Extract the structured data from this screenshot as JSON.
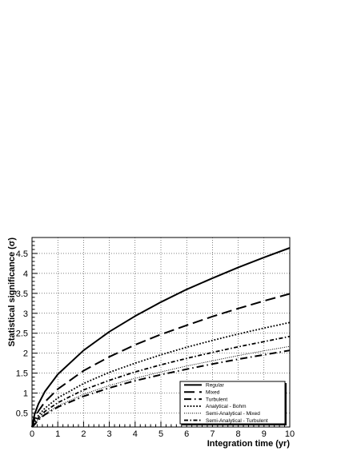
{
  "chart_data": {
    "type": "line",
    "title": "",
    "xlabel": "Integration time (yr)",
    "ylabel": "Statistical significance (σ)",
    "xlim": [
      0,
      10
    ],
    "ylim": [
      0.15,
      4.9
    ],
    "xticks": [
      0,
      1,
      2,
      3,
      4,
      5,
      6,
      7,
      8,
      9,
      10
    ],
    "yticks": [
      0.5,
      1,
      1.5,
      2,
      2.5,
      3,
      3.5,
      4,
      4.5
    ],
    "grid": true,
    "legend_position": "bottom-right",
    "series": [
      {
        "name": "Regular",
        "style": "solid",
        "color": "#000000",
        "x": [
          0,
          0.1,
          0.25,
          0.5,
          1,
          2,
          3,
          4,
          5,
          6,
          7,
          8,
          9,
          10
        ],
        "y": [
          0.15,
          0.47,
          0.73,
          1.04,
          1.47,
          2.07,
          2.54,
          2.93,
          3.28,
          3.6,
          3.88,
          4.15,
          4.4,
          4.64
        ]
      },
      {
        "name": "Mixed",
        "style": "long-dash",
        "color": "#000000",
        "x": [
          0,
          0.1,
          0.25,
          0.5,
          1,
          2,
          3,
          4,
          5,
          6,
          7,
          8,
          9,
          10
        ],
        "y": [
          0.15,
          0.35,
          0.55,
          0.78,
          1.1,
          1.56,
          1.91,
          2.21,
          2.47,
          2.7,
          2.92,
          3.12,
          3.31,
          3.49
        ]
      },
      {
        "name": "Turbulent",
        "style": "dash",
        "color": "#000000",
        "x": [
          0,
          0.1,
          0.25,
          0.5,
          1,
          2,
          3,
          4,
          5,
          6,
          7,
          8,
          9,
          10
        ],
        "y": [
          0.15,
          0.21,
          0.33,
          0.46,
          0.65,
          0.92,
          1.13,
          1.31,
          1.46,
          1.6,
          1.73,
          1.85,
          1.96,
          2.07
        ]
      },
      {
        "name": "Analytical - Bohm",
        "style": "dot",
        "color": "#000000",
        "x": [
          0,
          0.1,
          0.25,
          0.5,
          1,
          2,
          3,
          4,
          5,
          6,
          7,
          8,
          9,
          10
        ],
        "y": [
          0.15,
          0.28,
          0.44,
          0.62,
          0.88,
          1.24,
          1.52,
          1.75,
          1.96,
          2.15,
          2.32,
          2.48,
          2.63,
          2.77
        ]
      },
      {
        "name": "Semi-Analytical - Mixed",
        "style": "fine-dot",
        "color": "#000000",
        "x": [
          0,
          0.1,
          0.25,
          0.5,
          1,
          2,
          3,
          4,
          5,
          6,
          7,
          8,
          9,
          10
        ],
        "y": [
          0.15,
          0.22,
          0.34,
          0.48,
          0.68,
          0.97,
          1.19,
          1.37,
          1.53,
          1.68,
          1.81,
          1.94,
          2.06,
          2.17
        ]
      },
      {
        "name": "Semi-Analytical - Turbulent",
        "style": "dash-dot",
        "color": "#000000",
        "x": [
          0,
          0.1,
          0.25,
          0.5,
          1,
          2,
          3,
          4,
          5,
          6,
          7,
          8,
          9,
          10
        ],
        "y": [
          0.15,
          0.24,
          0.38,
          0.54,
          0.76,
          1.08,
          1.32,
          1.53,
          1.71,
          1.87,
          2.02,
          2.16,
          2.29,
          2.42
        ]
      }
    ]
  }
}
